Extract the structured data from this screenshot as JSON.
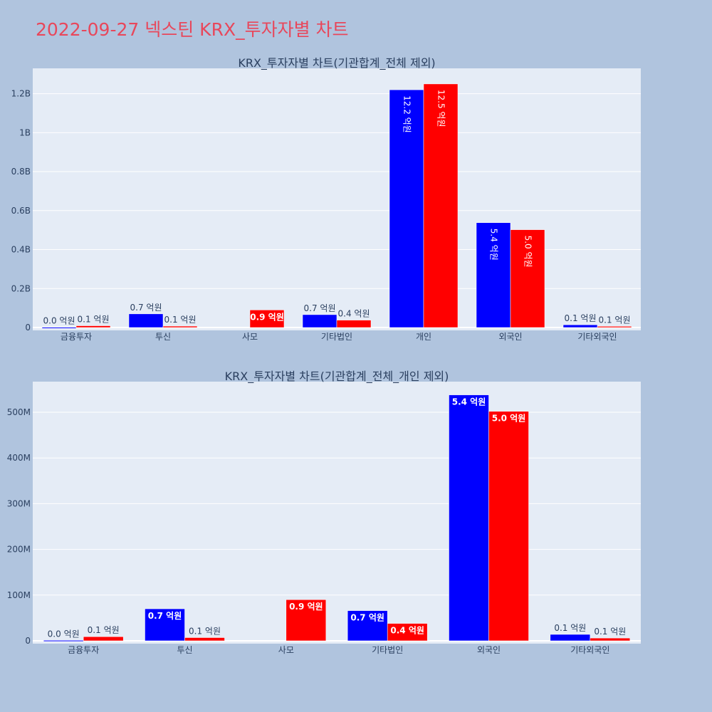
{
  "page": {
    "title": "2022-09-27 넥스틴 KRX_투자자별 차트"
  },
  "colors": {
    "background": "#b0c4de",
    "plot_background": "#e5ecf6",
    "buy": "#0000ff",
    "sell": "#ff0000",
    "title": "#e8475b",
    "axis_text": "#2a3f5f"
  },
  "chart_data": [
    {
      "type": "bar",
      "title": "KRX_투자자별 차트(기관합계_전체 제외)",
      "categories": [
        "금융투자",
        "투신",
        "사모",
        "기타법인",
        "개인",
        "외국인",
        "기타외국인"
      ],
      "series": [
        {
          "color": "#0000ff",
          "values": [
            1000000,
            70000000,
            0,
            66000000,
            1220000000,
            538000000,
            14000000
          ],
          "labels": [
            "0.0 억원",
            "0.7 억원",
            "",
            "0.7 억원",
            "12.2 억원",
            "5.4 억원",
            "0.1 억원"
          ]
        },
        {
          "color": "#ff0000",
          "values": [
            9000000,
            7000000,
            90000000,
            38000000,
            1250000000,
            502000000,
            6000000
          ],
          "labels": [
            "0.1 억원",
            "0.1 억원",
            "0.9 억원",
            "0.4 억원",
            "12.5 억원",
            "5.0 억원",
            "0.1 억원"
          ]
        }
      ],
      "ylim": [
        0,
        1330000000
      ],
      "yticks": [
        0,
        200000000,
        400000000,
        600000000,
        800000000,
        1000000000,
        1200000000
      ],
      "ytick_labels": [
        "0",
        "0.2B",
        "0.4B",
        "0.6B",
        "0.8B",
        "1B",
        "1.2B"
      ],
      "grid": true
    },
    {
      "type": "bar",
      "title": "KRX_투자자별 차트(기관합계_전체_개인 제외)",
      "categories": [
        "금융투자",
        "투신",
        "사모",
        "기타법인",
        "외국인",
        "기타외국인"
      ],
      "series": [
        {
          "color": "#0000ff",
          "values": [
            1000000,
            70000000,
            0,
            66000000,
            538000000,
            14000000
          ],
          "labels": [
            "0.0 억원",
            "0.7 억원",
            "",
            "0.7 억원",
            "5.4 억원",
            "0.1 억원"
          ]
        },
        {
          "color": "#ff0000",
          "values": [
            9000000,
            7000000,
            90000000,
            38000000,
            502000000,
            6000000
          ],
          "labels": [
            "0.1 억원",
            "0.1 억원",
            "0.9 억원",
            "0.4 억원",
            "5.0 억원",
            "0.1 억원"
          ]
        }
      ],
      "ylim": [
        0,
        567000000
      ],
      "yticks": [
        0,
        100000000,
        200000000,
        300000000,
        400000000,
        500000000
      ],
      "ytick_labels": [
        "0",
        "100M",
        "200M",
        "300M",
        "400M",
        "500M"
      ],
      "grid": true
    }
  ]
}
